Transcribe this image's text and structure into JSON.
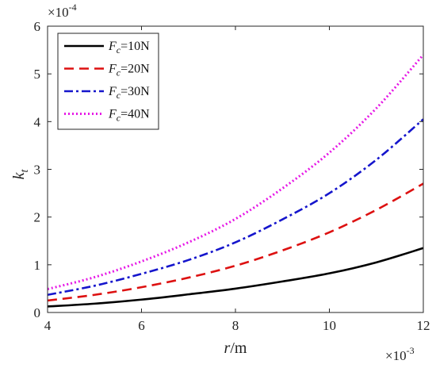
{
  "chart_data": {
    "type": "line",
    "xlabel": {
      "var": "r",
      "unit": "/m"
    },
    "ylabel": {
      "var": "k",
      "sub": "t"
    },
    "x_multiplier": {
      "base": "×10",
      "exp": "-3"
    },
    "y_multiplier": {
      "base": "×10",
      "exp": "-4"
    },
    "xlim": [
      4,
      12
    ],
    "ylim": [
      0,
      6
    ],
    "x_ticks": [
      "4",
      "6",
      "8",
      "10",
      "12"
    ],
    "y_ticks": [
      "0",
      "1",
      "2",
      "3",
      "4",
      "5",
      "6"
    ],
    "grid": false,
    "legend_position": "top-left",
    "x": [
      4,
      5,
      6,
      7,
      8,
      9,
      10,
      11,
      12
    ],
    "series": [
      {
        "name": "F_c=10N",
        "label": {
          "var": "F",
          "sub": "c",
          "rest": "=10N"
        },
        "color": "#000000",
        "style": "solid",
        "values": [
          0.125,
          0.185,
          0.27,
          0.38,
          0.5,
          0.65,
          0.82,
          1.05,
          1.35
        ]
      },
      {
        "name": "F_c=20N",
        "label": {
          "var": "F",
          "sub": "c",
          "rest": "=20N"
        },
        "color": "#dd1111",
        "style": "dashed",
        "values": [
          0.25,
          0.37,
          0.53,
          0.73,
          0.98,
          1.3,
          1.68,
          2.15,
          2.7
        ]
      },
      {
        "name": "F_c=30N",
        "label": {
          "var": "F",
          "sub": "c",
          "rest": "=30N"
        },
        "color": "#1515cc",
        "style": "dash-dot",
        "values": [
          0.37,
          0.56,
          0.81,
          1.1,
          1.47,
          1.95,
          2.5,
          3.2,
          4.05
        ]
      },
      {
        "name": "F_c=40N",
        "label": {
          "var": "F",
          "sub": "c",
          "rest": "=40N"
        },
        "color": "#e619e6",
        "style": "dotted",
        "values": [
          0.49,
          0.74,
          1.07,
          1.47,
          1.96,
          2.6,
          3.35,
          4.28,
          5.4
        ]
      }
    ]
  }
}
